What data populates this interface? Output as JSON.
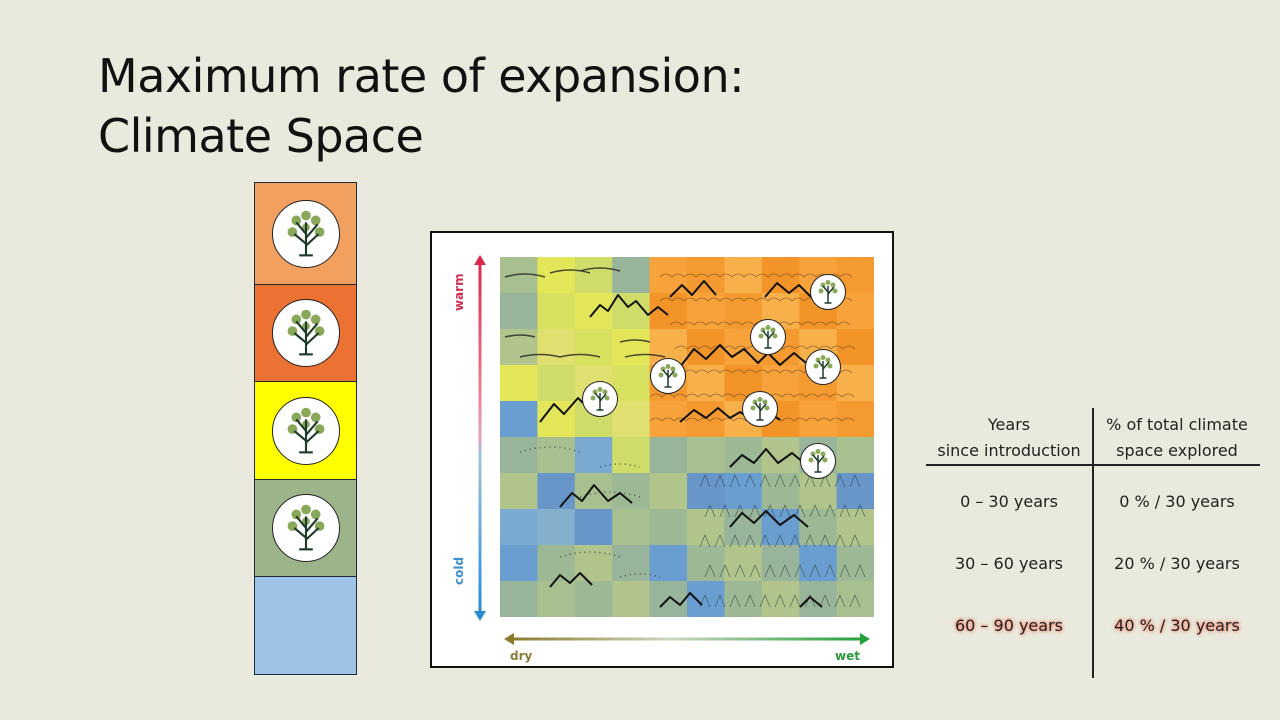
{
  "title": {
    "line1": "Maximum rate of expansion:",
    "line2": "Climate Space"
  },
  "legend": {
    "swatches": [
      {
        "color": "#f1a060",
        "icon": "tree-icon"
      },
      {
        "color": "#ec7234",
        "icon": "tree-icon"
      },
      {
        "color": "#ffff00",
        "icon": "tree-icon"
      },
      {
        "color": "#9cb489",
        "icon": "tree-icon"
      },
      {
        "color": "#9dc3e6",
        "icon": null
      }
    ]
  },
  "map": {
    "y_axis": {
      "top": "warm",
      "bottom": "cold"
    },
    "x_axis": {
      "left": "dry",
      "right": "wet"
    }
  },
  "table": {
    "header": {
      "col1": [
        "Years",
        "since introduction"
      ],
      "col2": [
        "% of total climate",
        "space explored"
      ]
    },
    "rows": [
      {
        "years": "0 – 30 years",
        "explored": "0 % / 30 years",
        "highlight": false
      },
      {
        "years": "30 – 60 years",
        "explored": "20 % / 30 years",
        "highlight": false
      },
      {
        "years": "60 – 90 years",
        "explored": "40 % / 30 years",
        "highlight": true
      }
    ]
  }
}
